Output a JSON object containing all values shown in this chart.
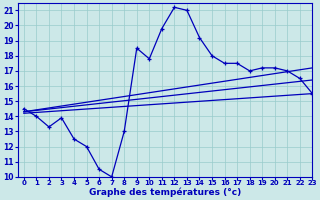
{
  "title": "Graphe des températures (°c)",
  "bg_color": "#cce8e8",
  "line_color": "#0000bb",
  "grid_color": "#99cccc",
  "xlim": [
    -0.5,
    23
  ],
  "ylim": [
    10,
    21.5
  ],
  "yticks": [
    10,
    11,
    12,
    13,
    14,
    15,
    16,
    17,
    18,
    19,
    20,
    21
  ],
  "xticks": [
    0,
    1,
    2,
    3,
    4,
    5,
    6,
    7,
    8,
    9,
    10,
    11,
    12,
    13,
    14,
    15,
    16,
    17,
    18,
    19,
    20,
    21,
    22,
    23
  ],
  "temp_x": [
    0,
    1,
    2,
    3,
    4,
    5,
    6,
    7,
    8,
    9,
    10,
    11,
    12,
    13,
    14,
    15,
    16,
    17,
    18,
    19,
    20,
    21,
    22,
    23
  ],
  "temp_y": [
    14.5,
    14.0,
    13.3,
    13.9,
    12.5,
    12.0,
    10.5,
    10.0,
    13.0,
    18.5,
    17.8,
    19.8,
    21.2,
    21.0,
    19.2,
    18.0,
    17.5,
    17.5,
    17.0,
    17.2,
    17.2,
    17.0,
    16.5,
    15.5
  ],
  "reg_lines": [
    {
      "x0": 0,
      "y0": 14.3,
      "x1": 23,
      "y1": 17.2
    },
    {
      "x0": 0,
      "y0": 14.3,
      "x1": 23,
      "y1": 16.4
    },
    {
      "x0": 0,
      "y0": 14.2,
      "x1": 23,
      "y1": 15.5
    }
  ]
}
